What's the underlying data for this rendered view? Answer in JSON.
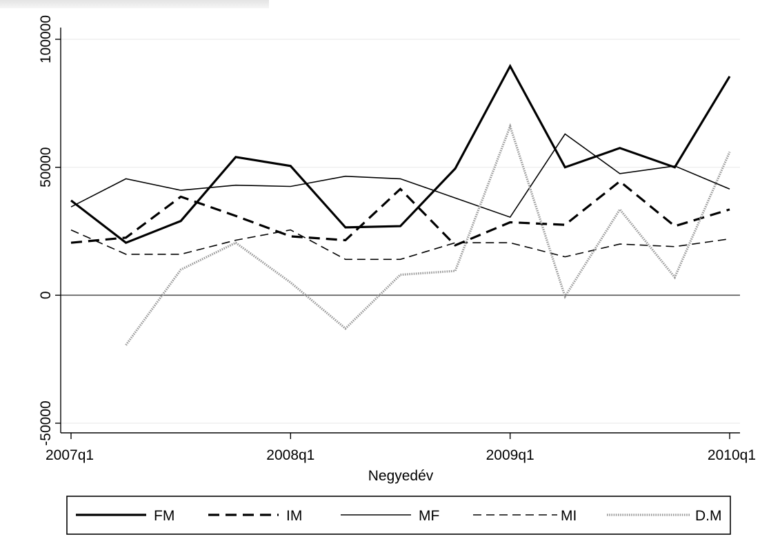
{
  "chart_data": {
    "type": "line",
    "title": "",
    "xlabel": "Negyedév",
    "ylabel": "",
    "x": [
      "2007q1",
      "2007q2",
      "2007q3",
      "2007q4",
      "2008q1",
      "2008q2",
      "2008q3",
      "2008q4",
      "2009q1",
      "2009q2",
      "2009q3",
      "2009q4",
      "2010q1"
    ],
    "x_ticks": [
      "2007q1",
      "2008q1",
      "2009q1",
      "2010q1"
    ],
    "y_ticks": [
      -50000,
      0,
      50000,
      100000
    ],
    "y_tick_labels": [
      "-50000",
      "0",
      "50000",
      "100000"
    ],
    "ylim": [
      -50000,
      100000
    ],
    "reference_line": 0,
    "grid": "horizontal",
    "legend_position": "bottom",
    "series": [
      {
        "name": "FM",
        "style": "thick-solid",
        "values": [
          37000,
          20500,
          29000,
          54000,
          50500,
          26500,
          27000,
          49500,
          89500,
          50000,
          57500,
          50000,
          85500
        ]
      },
      {
        "name": "IM",
        "style": "thick-dashed",
        "values": [
          20500,
          22500,
          38500,
          31000,
          23000,
          21500,
          41500,
          19500,
          28500,
          27500,
          44500,
          27000,
          33500
        ]
      },
      {
        "name": "MF",
        "style": "thin-solid",
        "values": [
          34500,
          45500,
          41000,
          43000,
          42500,
          46500,
          45500,
          38000,
          30500,
          63000,
          47500,
          50500,
          41500
        ]
      },
      {
        "name": "MI",
        "style": "thin-dashed",
        "values": [
          25500,
          16000,
          16000,
          21500,
          25500,
          14000,
          14000,
          20500,
          20500,
          15000,
          20000,
          19000,
          22000
        ]
      },
      {
        "name": "D.M",
        "style": "dotted",
        "values": [
          null,
          -19500,
          10000,
          20500,
          5000,
          -13000,
          8000,
          9500,
          66000,
          -500,
          33500,
          7000,
          56000
        ]
      }
    ]
  }
}
